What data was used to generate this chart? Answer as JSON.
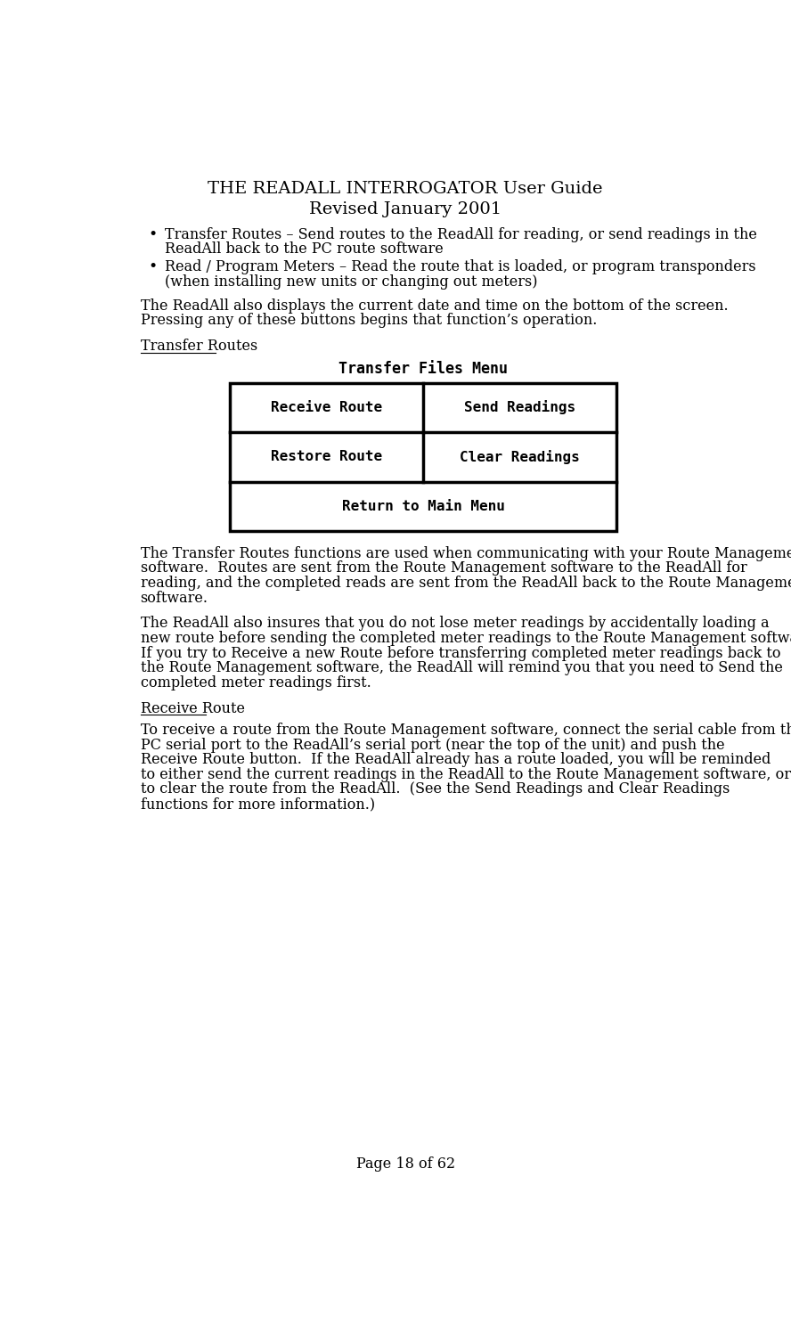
{
  "title_line1": "THE READALL INTERROGATOR User Guide",
  "title_line2": "Revised January 2001",
  "page_footer": "Page 18 of 62",
  "bg_color": "#ffffff",
  "text_color": "#000000",
  "body_font_size": 11.5,
  "title_font_size": 14,
  "bullet_items": [
    "Transfer Routes – Send routes to the ReadAll for reading, or send readings in the ReadAll back to the PC route software",
    "Read / Program Meters – Read the route that is loaded, or program transponders (when installing new units or changing out meters)"
  ],
  "para1": "The ReadAll also displays the current date and time on the bottom of the screen.  Pressing any of these buttons begins that function’s operation.",
  "section_heading": "Transfer Routes",
  "menu_title": "Transfer Files Menu",
  "menu_buttons": [
    [
      "Receive Route",
      "Send Readings"
    ],
    [
      "Restore Route",
      "Clear Readings"
    ],
    [
      "Return to Main Menu"
    ]
  ],
  "para2": "The Transfer Routes functions are used when communicating with your Route Management software.  Routes are sent from the Route Management software to the ReadAll for reading, and the completed reads are sent from the ReadAll back to the Route Management software.",
  "para3": "The ReadAll also insures that you do not lose meter readings by accidentally loading a new route before sending the completed meter readings to the Route Management software.  If you try to Receive a new Route before transferring completed meter readings back to the Route Management software, the ReadAll will remind you that you need to Send the completed meter readings first.",
  "section_heading2": "Receive Route",
  "para4": "To receive a route from the Route Management software, connect the serial cable from the PC serial port to the ReadAll’s serial port (near the top of the unit) and push the Receive Route button.  If the ReadAll already has a route loaded, you will be reminded to either send the current readings in the ReadAll to the Route Management software, or to clear the route from the ReadAll.  (See the Send Readings and Clear Readings functions for more information.)"
}
